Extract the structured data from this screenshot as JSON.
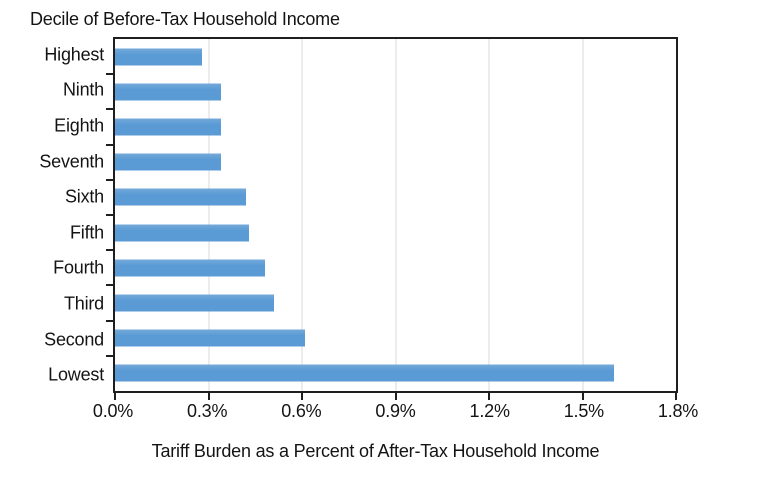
{
  "chart_data": {
    "type": "bar",
    "orientation": "horizontal",
    "title": "Decile of Before-Tax Household Income",
    "xlabel": "Tariff Burden as a Percent of After-Tax Household Income",
    "categories": [
      "Highest",
      "Ninth",
      "Eighth",
      "Seventh",
      "Sixth",
      "Fifth",
      "Fourth",
      "Third",
      "Second",
      "Lowest"
    ],
    "values": [
      0.28,
      0.34,
      0.34,
      0.34,
      0.42,
      0.43,
      0.48,
      0.51,
      0.61,
      1.6
    ],
    "value_unit": "%",
    "xlim": [
      0,
      1.8
    ],
    "x_ticks": [
      "0.0%",
      "0.3%",
      "0.6%",
      "0.9%",
      "1.2%",
      "1.5%",
      "1.8%"
    ],
    "x_tick_values": [
      0,
      0.3,
      0.6,
      0.9,
      1.2,
      1.5,
      1.8
    ],
    "grid": "vertical-gridlines",
    "legend": "none",
    "bar_color": "#5b9bd5",
    "axis_color": "#1f1f1f",
    "gridline_color": "#d9d9d9",
    "text_color": "#141414",
    "background_color": "#ffffff"
  }
}
